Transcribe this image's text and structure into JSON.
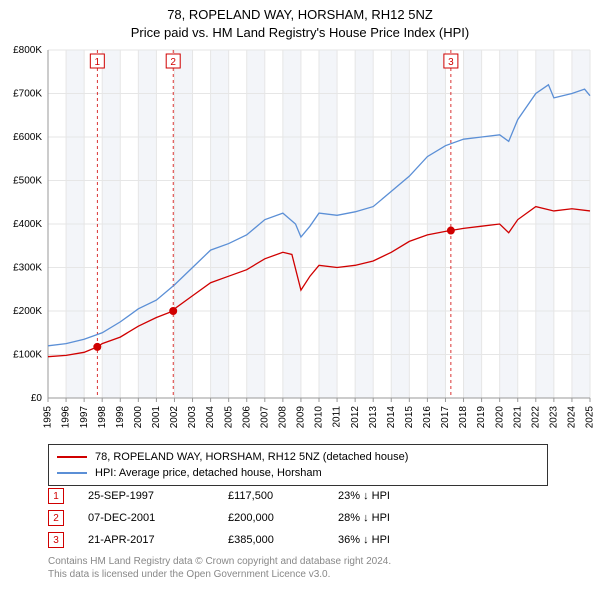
{
  "header": {
    "address": "78, ROPELAND WAY, HORSHAM, RH12 5NZ",
    "subtitle": "Price paid vs. HM Land Registry's House Price Index (HPI)"
  },
  "chart": {
    "type": "line",
    "background_color": "#ffffff",
    "grid_color": "#e6e6e6",
    "alt_band_color": "#f3f5f9",
    "axis_font_size": 10,
    "x_tick_rotation": -90,
    "ylim": [
      0,
      800000
    ],
    "ytick_step": 100000,
    "ytick_labels": [
      "£0",
      "£100K",
      "£200K",
      "£300K",
      "£400K",
      "£500K",
      "£600K",
      "£700K",
      "£800K"
    ],
    "xlim": [
      1995,
      2025
    ],
    "xticks": [
      1995,
      1996,
      1997,
      1998,
      1999,
      2000,
      2001,
      2002,
      2003,
      2004,
      2005,
      2006,
      2007,
      2008,
      2009,
      2010,
      2011,
      2012,
      2013,
      2014,
      2015,
      2016,
      2017,
      2018,
      2019,
      2020,
      2021,
      2022,
      2023,
      2024,
      2025
    ],
    "series": [
      {
        "name": "property",
        "label": "78, ROPELAND WAY, HORSHAM, RH12 5NZ (detached house)",
        "color": "#d00000",
        "line_width": 1.3,
        "points": [
          [
            1995,
            95000
          ],
          [
            1996,
            98000
          ],
          [
            1997,
            105000
          ],
          [
            1997.73,
            117500
          ],
          [
            1998,
            125000
          ],
          [
            1999,
            140000
          ],
          [
            2000,
            165000
          ],
          [
            2001,
            185000
          ],
          [
            2001.93,
            200000
          ],
          [
            2002,
            205000
          ],
          [
            2003,
            235000
          ],
          [
            2004,
            265000
          ],
          [
            2005,
            280000
          ],
          [
            2006,
            295000
          ],
          [
            2007,
            320000
          ],
          [
            2008,
            335000
          ],
          [
            2008.5,
            330000
          ],
          [
            2009,
            248000
          ],
          [
            2009.5,
            280000
          ],
          [
            2010,
            305000
          ],
          [
            2011,
            300000
          ],
          [
            2012,
            305000
          ],
          [
            2013,
            315000
          ],
          [
            2014,
            335000
          ],
          [
            2015,
            360000
          ],
          [
            2016,
            375000
          ],
          [
            2017,
            383000
          ],
          [
            2017.3,
            385000
          ],
          [
            2018,
            390000
          ],
          [
            2019,
            395000
          ],
          [
            2020,
            400000
          ],
          [
            2020.5,
            380000
          ],
          [
            2021,
            410000
          ],
          [
            2022,
            440000
          ],
          [
            2023,
            430000
          ],
          [
            2024,
            435000
          ],
          [
            2025,
            430000
          ]
        ]
      },
      {
        "name": "hpi",
        "label": "HPI: Average price, detached house, Horsham",
        "color": "#5b8fd6",
        "line_width": 1.3,
        "points": [
          [
            1995,
            120000
          ],
          [
            1996,
            125000
          ],
          [
            1997,
            135000
          ],
          [
            1998,
            150000
          ],
          [
            1999,
            175000
          ],
          [
            2000,
            205000
          ],
          [
            2001,
            225000
          ],
          [
            2002,
            260000
          ],
          [
            2003,
            300000
          ],
          [
            2004,
            340000
          ],
          [
            2005,
            355000
          ],
          [
            2006,
            375000
          ],
          [
            2007,
            410000
          ],
          [
            2008,
            425000
          ],
          [
            2008.7,
            400000
          ],
          [
            2009,
            370000
          ],
          [
            2009.5,
            395000
          ],
          [
            2010,
            425000
          ],
          [
            2011,
            420000
          ],
          [
            2012,
            428000
          ],
          [
            2013,
            440000
          ],
          [
            2014,
            475000
          ],
          [
            2015,
            510000
          ],
          [
            2016,
            555000
          ],
          [
            2017,
            580000
          ],
          [
            2018,
            595000
          ],
          [
            2019,
            600000
          ],
          [
            2020,
            605000
          ],
          [
            2020.5,
            590000
          ],
          [
            2021,
            640000
          ],
          [
            2022,
            700000
          ],
          [
            2022.7,
            720000
          ],
          [
            2023,
            690000
          ],
          [
            2024,
            700000
          ],
          [
            2024.7,
            710000
          ],
          [
            2025,
            695000
          ]
        ]
      }
    ],
    "reference_lines": {
      "color": "#d00000",
      "dash": "3,3",
      "line_width": 0.8,
      "items": [
        {
          "n": "1",
          "x": 1997.73,
          "y": 117500
        },
        {
          "n": "2",
          "x": 2001.93,
          "y": 200000
        },
        {
          "n": "3",
          "x": 2017.3,
          "y": 385000
        }
      ]
    },
    "marker_style": {
      "radius": 4,
      "fill": "#d00000"
    }
  },
  "legend": {
    "items": [
      {
        "color": "#d00000",
        "text": "78, ROPELAND WAY, HORSHAM, RH12 5NZ (detached house)"
      },
      {
        "color": "#5b8fd6",
        "text": "HPI: Average price, detached house, Horsham"
      }
    ]
  },
  "transactions": [
    {
      "n": "1",
      "date": "25-SEP-1997",
      "price": "£117,500",
      "diff": "23% ↓ HPI"
    },
    {
      "n": "2",
      "date": "07-DEC-2001",
      "price": "£200,000",
      "diff": "28% ↓ HPI"
    },
    {
      "n": "3",
      "date": "21-APR-2017",
      "price": "£385,000",
      "diff": "36% ↓ HPI"
    }
  ],
  "footer": {
    "line1": "Contains HM Land Registry data © Crown copyright and database right 2024.",
    "line2": "This data is licensed under the Open Government Licence v3.0."
  }
}
